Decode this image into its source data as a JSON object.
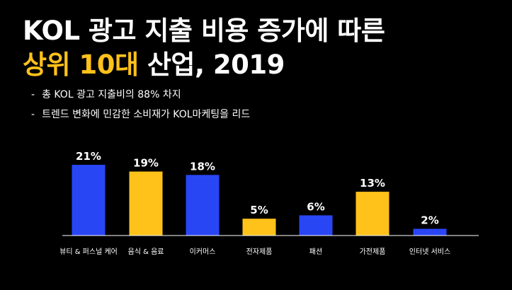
{
  "header": {
    "title_line1": "KOL 광고 지출 비용 증가에 따른",
    "title_line2_accent": "상위 10대",
    "title_line2_rest": " 산업, 2019"
  },
  "bullets": [
    "총 KOL 광고 지출비의 88% 차지",
    "트렌드 변화에 민감한 소비재가 KOL마케팅을 리드"
  ],
  "colors": {
    "blue": "#2946F5",
    "yellow": "#FFC21A",
    "axis": "#FFFFFF"
  },
  "chart_data": {
    "type": "bar",
    "categories": [
      "뷰티 & 퍼스널 케어",
      "음식 & 음료",
      "이커머스",
      "전자제품",
      "패션",
      "가전제품",
      "인터넷 서비스"
    ],
    "values": [
      21,
      19,
      18,
      5,
      6,
      13,
      2
    ],
    "labels": [
      "21%",
      "19%",
      "18%",
      "5%",
      "6%",
      "13%",
      "2%"
    ],
    "bar_colors": [
      "blue",
      "yellow",
      "blue",
      "yellow",
      "blue",
      "yellow",
      "blue"
    ],
    "ylim": [
      0,
      21
    ],
    "unit": "%"
  }
}
